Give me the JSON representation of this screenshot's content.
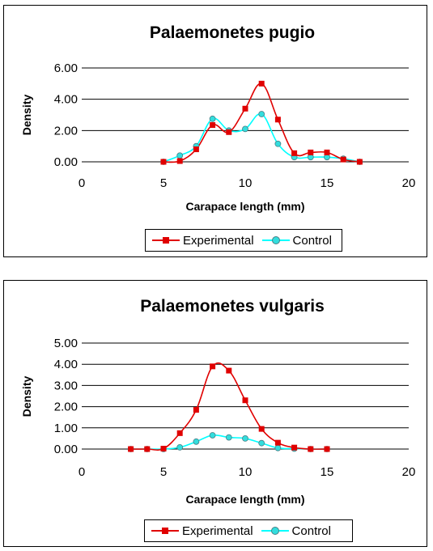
{
  "colors": {
    "experimental": "#e00000",
    "control": "#00ffff",
    "control_marker": "#33dddd",
    "grid": "#000000"
  },
  "chart_data": [
    {
      "type": "line",
      "title": "Palaemonetes pugio",
      "xlabel": "Carapace length (mm)",
      "ylabel": "Density",
      "xlim": [
        0,
        20
      ],
      "ylim": [
        0,
        6
      ],
      "x_ticks": [
        "0",
        "5",
        "10",
        "15",
        "20"
      ],
      "y_ticks": [
        "0.00",
        "2.00",
        "4.00",
        "6.00"
      ],
      "grid": "horizontal",
      "legend_position": "bottom",
      "series": [
        {
          "name": "Experimental",
          "marker": "square",
          "x": [
            5,
            6,
            7,
            8,
            9,
            10,
            11,
            12,
            13,
            14,
            15,
            16,
            17
          ],
          "y": [
            0.0,
            0.05,
            0.8,
            2.35,
            1.9,
            3.4,
            5.0,
            2.7,
            0.55,
            0.6,
            0.6,
            0.15,
            0.0
          ]
        },
        {
          "name": "Control",
          "marker": "circle",
          "x": [
            5,
            6,
            7,
            8,
            9,
            10,
            11,
            12,
            13,
            14,
            15,
            16,
            17
          ],
          "y": [
            0.0,
            0.4,
            1.0,
            2.75,
            2.0,
            2.1,
            3.05,
            1.15,
            0.3,
            0.3,
            0.3,
            0.2,
            0.0
          ]
        }
      ]
    },
    {
      "type": "line",
      "title": "Palaemonetes vulgaris",
      "xlabel": "Carapace length (mm)",
      "ylabel": "Density",
      "xlim": [
        0,
        20
      ],
      "ylim": [
        0,
        5
      ],
      "x_ticks": [
        "0",
        "5",
        "10",
        "15",
        "20"
      ],
      "y_ticks": [
        "0.00",
        "1.00",
        "2.00",
        "3.00",
        "4.00",
        "5.00"
      ],
      "grid": "horizontal",
      "legend_position": "bottom",
      "series": [
        {
          "name": "Experimental",
          "marker": "square",
          "x": [
            3,
            4,
            5,
            6,
            7,
            8,
            9,
            10,
            11,
            12,
            13,
            14,
            15
          ],
          "y": [
            0.0,
            0.0,
            0.02,
            0.75,
            1.85,
            3.9,
            3.7,
            2.3,
            0.95,
            0.3,
            0.07,
            0.0,
            0.0
          ]
        },
        {
          "name": "Control",
          "marker": "circle",
          "x": [
            3,
            4,
            5,
            6,
            7,
            8,
            9,
            10,
            11,
            12,
            13,
            14,
            15
          ],
          "y": [
            0.0,
            0.0,
            0.0,
            0.08,
            0.35,
            0.65,
            0.55,
            0.5,
            0.28,
            0.05,
            0.02,
            0.0,
            0.0
          ]
        }
      ]
    }
  ]
}
